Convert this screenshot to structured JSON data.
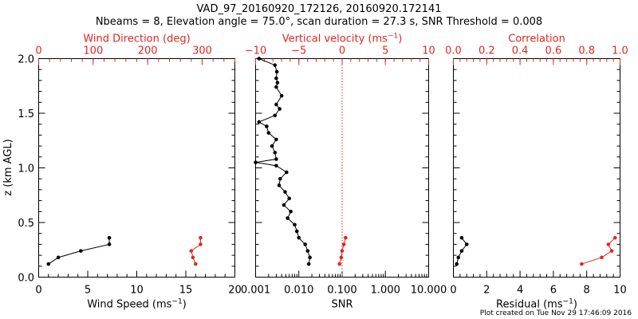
{
  "title_line1": "VAD_97_20160920_172126, 20160920.172141",
  "title_line2": "Nbeams = 8, Elevation angle = 75.0°, scan duration = 27.3 s, SNR Threshold = 0.008",
  "footer": "Plot created on Tue Nov 29 17:46:09 2016",
  "colors": {
    "primary": "#000000",
    "secondary": "#e0271f"
  },
  "chart_data": [
    {
      "type": "line",
      "panel": "wind",
      "ylabel": "z (km AGL)",
      "ylim": [
        0,
        2
      ],
      "yticks": [
        "0.0",
        "0.5",
        "1.0",
        "1.5",
        "2.0"
      ],
      "xlabel_bottom": "Wind Speed (ms",
      "xlabel_bottom_sup": "−1",
      "xlabel_bottom_tail": ")",
      "xlim_bottom": [
        0,
        20
      ],
      "xticks_bottom": [
        "0",
        "5",
        "10",
        "15",
        "20"
      ],
      "xlabel_top": "Wind Direction (deg)",
      "xlim_top": [
        0,
        360
      ],
      "xticks_top": [
        "0",
        "100",
        "200",
        "300"
      ],
      "series": [
        {
          "axis": "bottom",
          "color": "#000000",
          "points": [
            [
              1.0,
              0.12
            ],
            [
              2.0,
              0.18
            ],
            [
              4.3,
              0.24
            ],
            [
              7.2,
              0.3
            ],
            [
              7.2,
              0.36
            ]
          ]
        },
        {
          "axis": "top",
          "color": "#e0271f",
          "points": [
            [
              288,
              0.12
            ],
            [
              283,
              0.18
            ],
            [
              280,
              0.24
            ],
            [
              297,
              0.3
            ],
            [
              297,
              0.36
            ]
          ]
        }
      ]
    },
    {
      "type": "line",
      "panel": "snr",
      "xlabel_bottom": "SNR",
      "xscale_bottom": "log",
      "xlim_bottom": [
        0.001,
        10
      ],
      "xticks_bottom": [
        "0.001",
        "0.010",
        "0.100",
        "1.000",
        "10.000"
      ],
      "xlabel_top": "Vertical velocity (ms",
      "xlabel_top_sup": "−1",
      "xlabel_top_tail": ")",
      "xlim_top": [
        -10,
        10
      ],
      "xticks_top": [
        "−10",
        "−5",
        "0",
        "5",
        "10"
      ],
      "zero_line_top": 0,
      "series": [
        {
          "axis": "bottom",
          "color": "#000000",
          "points": [
            [
              0.017,
              0.12
            ],
            [
              0.018,
              0.18
            ],
            [
              0.016,
              0.24
            ],
            [
              0.014,
              0.3
            ],
            [
              0.01,
              0.36
            ],
            [
              0.009,
              0.42
            ],
            [
              0.008,
              0.48
            ],
            [
              0.0055,
              0.54
            ],
            [
              0.0065,
              0.6
            ],
            [
              0.0045,
              0.66
            ],
            [
              0.006,
              0.72
            ],
            [
              0.0048,
              0.78
            ],
            [
              0.0035,
              0.84
            ],
            [
              0.0037,
              0.9
            ],
            [
              0.0052,
              0.96
            ],
            [
              0.003,
              1.02
            ],
            [
              0.001,
              1.05
            ],
            [
              0.003,
              1.08
            ],
            [
              0.0028,
              1.14
            ],
            [
              0.0024,
              1.2
            ],
            [
              0.003,
              1.26
            ],
            [
              0.002,
              1.32
            ],
            [
              0.0018,
              1.38
            ],
            [
              0.0012,
              1.42
            ],
            [
              0.0028,
              1.48
            ],
            [
              0.0036,
              1.54
            ],
            [
              0.003,
              1.58
            ],
            [
              0.004,
              1.66
            ],
            [
              0.003,
              1.74
            ],
            [
              0.0032,
              1.78
            ],
            [
              0.003,
              1.82
            ],
            [
              0.0031,
              1.88
            ],
            [
              0.0028,
              1.94
            ],
            [
              0.0012,
              2.0
            ]
          ]
        },
        {
          "axis": "top",
          "color": "#e0271f",
          "points": [
            [
              -0.3,
              0.12
            ],
            [
              -0.1,
              0.18
            ],
            [
              0.0,
              0.24
            ],
            [
              0.2,
              0.3
            ],
            [
              0.4,
              0.36
            ]
          ]
        }
      ]
    },
    {
      "type": "line",
      "panel": "residual",
      "xlabel_bottom": "Residual (ms",
      "xlabel_bottom_sup": "−1",
      "xlabel_bottom_tail": ")",
      "xlim_bottom": [
        0,
        10
      ],
      "xticks_bottom": [
        "0",
        "2",
        "4",
        "6",
        "8",
        "10"
      ],
      "xlabel_top": "Correlation",
      "xlim_top": [
        0,
        1
      ],
      "xticks_top": [
        "0.0",
        "0.2",
        "0.4",
        "0.6",
        "0.8",
        "1.0"
      ],
      "series": [
        {
          "axis": "bottom",
          "color": "#000000",
          "points": [
            [
              0.2,
              0.12
            ],
            [
              0.3,
              0.18
            ],
            [
              0.5,
              0.24
            ],
            [
              0.8,
              0.3
            ],
            [
              0.5,
              0.36
            ]
          ]
        },
        {
          "axis": "top",
          "color": "#e0271f",
          "points": [
            [
              0.77,
              0.12
            ],
            [
              0.89,
              0.18
            ],
            [
              0.95,
              0.24
            ],
            [
              0.93,
              0.3
            ],
            [
              0.97,
              0.36
            ]
          ]
        }
      ]
    }
  ]
}
